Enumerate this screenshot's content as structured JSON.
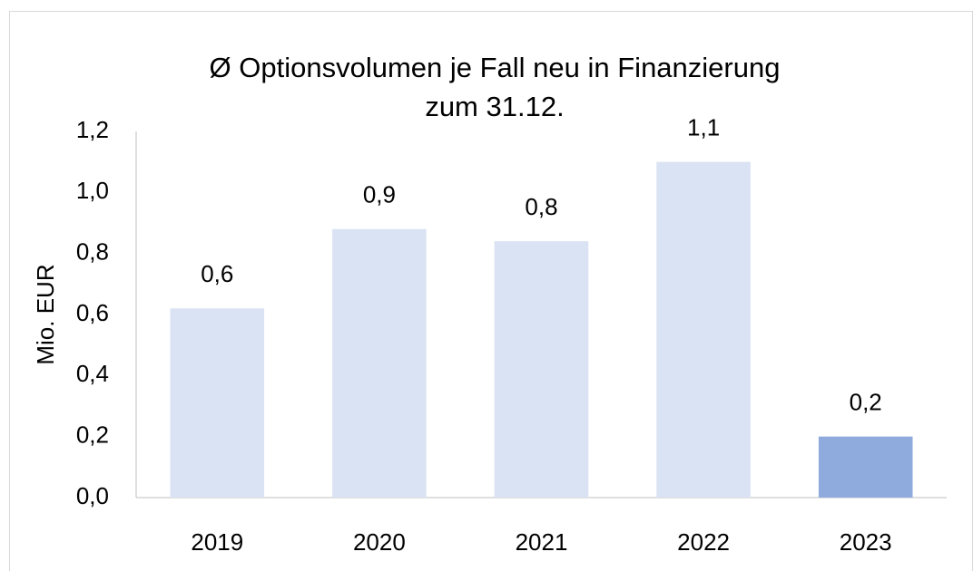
{
  "chart_data": {
    "type": "bar",
    "title": [
      "Ø Optionsvolumen je Fall neu in Finanzierung",
      "zum 31.12."
    ],
    "y_label": "Mio. EUR",
    "categories": [
      "2019",
      "2020",
      "2021",
      "2022",
      "2023"
    ],
    "values": [
      0.62,
      0.88,
      0.84,
      1.1,
      0.2
    ],
    "value_labels": [
      "0,6",
      "0,9",
      "0,8",
      "1,1",
      "0,2"
    ],
    "colors": [
      "#dae3f3",
      "#dae3f3",
      "#dae3f3",
      "#dae3f3",
      "#8faadc"
    ],
    "ylim": [
      0,
      1.2
    ],
    "yticks": [
      {
        "value": 0,
        "label": "0,0"
      },
      {
        "value": 0.2,
        "label": "0,2"
      },
      {
        "value": 0.4,
        "label": "0,4"
      },
      {
        "value": 0.6,
        "label": "0,6"
      },
      {
        "value": 0.8,
        "label": "0,8"
      },
      {
        "value": 1.0,
        "label": "1,0"
      },
      {
        "value": 1.2,
        "label": "1,2"
      }
    ],
    "grid": false
  }
}
